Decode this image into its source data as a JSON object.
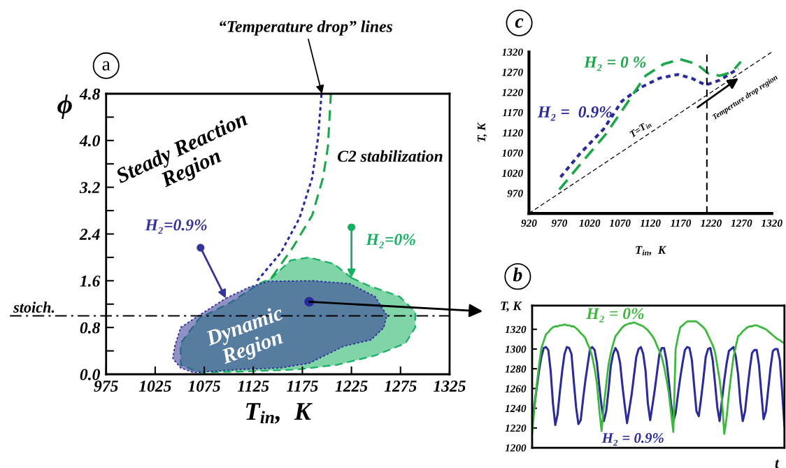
{
  "chart_data": [
    {
      "type": "line",
      "xlabel": "T$_{in}$,  K",
      "ylabel": "ϕ",
      "xlim": [
        975,
        1325
      ],
      "xticks": [
        975,
        1025,
        1075,
        1125,
        1175,
        1225,
        1275,
        1325
      ],
      "ylim": [
        0,
        4.8
      ],
      "yticks": [
        {
          "value": 0,
          "label": "0.0"
        },
        {
          "value": 0.4,
          "label": null
        },
        0.8,
        {
          "value": 1.2,
          "label": null
        },
        1.6,
        {
          "value": 2.0,
          "label": null
        },
        2.4,
        {
          "value": 2.8,
          "label": null
        },
        3.2,
        {
          "value": 3.6,
          "label": null
        },
        {
          "value": 4,
          "label": "4.0"
        },
        {
          "value": 4.4,
          "label": null
        },
        4.8
      ],
      "series": [
        {
          "name": "H₂=0%",
          "type": "area",
          "color": "#16b060",
          "line_style": "dashed",
          "x": [
            1225,
            1242,
            1274,
            1290,
            1290,
            1280,
            1249,
            1210,
            1169,
            1121,
            1070,
            1051,
            1051,
            1070,
            1102,
            1131,
            1144,
            1163,
            1182,
            1207
          ],
          "values": [
            1.65,
            1.52,
            1.33,
            1.07,
            0.8,
            0.53,
            0.32,
            0.16,
            0.08,
            0.05,
            0.03,
            0.16,
            0.53,
            0.96,
            1.23,
            1.55,
            1.65,
            1.95,
            2.0,
            1.89
          ]
        },
        {
          "name": "H₂=0.9%",
          "type": "area",
          "color": "#353599",
          "line_style": "dotted",
          "x": [
            1097,
            1121,
            1140,
            1185,
            1223,
            1249,
            1261,
            1258,
            1245,
            1217,
            1182,
            1153,
            1109,
            1064,
            1051,
            1043,
            1045,
            1051,
            1070
          ],
          "values": [
            1.3,
            1.49,
            1.59,
            1.6,
            1.55,
            1.33,
            1.01,
            0.8,
            0.59,
            0.48,
            0.19,
            0.11,
            0.08,
            0.03,
            0.11,
            0.27,
            0.48,
            0.8,
            1.01
          ]
        },
        {
          "type": "line",
          "color": "#2a2a9a",
          "line_style": "dotted",
          "x": [
            1129,
            1153,
            1172,
            1185,
            1191,
            1194.5
          ],
          "values": [
            1.6,
            2.08,
            2.67,
            3.36,
            4.05,
            4.8
          ]
        },
        {
          "type": "line",
          "color": "#1aa84a",
          "line_style": "dashed",
          "x": [
            1143.6,
            1166,
            1185,
            1196,
            1201,
            1204
          ],
          "values": [
            1.65,
            2.19,
            2.72,
            3.36,
            3.89,
            4.8
          ]
        }
      ],
      "ref_lines": [
        {
          "axis": "y",
          "value": 1.0,
          "label": "stoich.",
          "color": "#000000",
          "line_style": "dashdot"
        }
      ],
      "annotations": [
        "a",
        {
          "text": "“Temperature drop” lines",
          "x": 1195,
          "y": 4.8
        },
        "Steady Reaction\nRegion",
        "C2 stabilization",
        {
          "text": "Dynamic\nRegion",
          "x": 1182,
          "y": 1.24
        }
      ]
    },
    {
      "type": "line",
      "xlabel": "T$_{in}$,  K",
      "ylabel": "T, K",
      "xlim": [
        920,
        1320
      ],
      "xticks": [
        920,
        970,
        1020,
        1070,
        1120,
        1170,
        1220,
        1270,
        1320
      ],
      "ylim": [
        920,
        1320
      ],
      "yticks": [
        970,
        1020,
        1070,
        1120,
        1170,
        1220,
        1270,
        1320
      ],
      "series": [
        {
          "name": "H₂ =  0.9%",
          "color": "#2a2a9a",
          "line_style": "dotted",
          "x": [
            972,
            1004,
            1043,
            1073,
            1104,
            1135,
            1165,
            1188,
            1211,
            1234,
            1265
          ],
          "values": [
            1010,
            1068,
            1129,
            1198,
            1232,
            1255,
            1264,
            1255,
            1238,
            1250,
            1279
          ]
        },
        {
          "name": "H₂ = 0 %",
          "color": "#1aa84a",
          "line_style": "dashed",
          "x": [
            970,
            1008,
            1047,
            1081,
            1112,
            1142,
            1169,
            1196,
            1215,
            1234,
            1254,
            1269
          ],
          "values": [
            979,
            1048,
            1117,
            1192,
            1261,
            1290,
            1302,
            1290,
            1267,
            1261,
            1270,
            1296
          ]
        },
        {
          "name": "T=T$_{in}$",
          "color": "#000000",
          "line_style": "dashed",
          "x": [
            920,
            1320
          ],
          "values": [
            920,
            1320
          ]
        }
      ],
      "ref_lines": [
        {
          "axis": "x",
          "value": 1213,
          "color": "#000000",
          "line_style": "dashed"
        }
      ],
      "annotations": [
        "c",
        {
          "text": "Temperture drop region",
          "x": 1265,
          "y": 1255
        }
      ]
    },
    {
      "type": "line",
      "xlabel": "t",
      "ylabel": "T, K",
      "tick_labels": "y",
      "categories": [
        null,
        null,
        null,
        null,
        null,
        null,
        null,
        null,
        null,
        null,
        null,
        null,
        null,
        null,
        null,
        null,
        null,
        null,
        null,
        null,
        null,
        null,
        null,
        null,
        null,
        null,
        null,
        null,
        null,
        null,
        null,
        null,
        null,
        null,
        null,
        null,
        null,
        null,
        null,
        null,
        null,
        null,
        null,
        null,
        null,
        null,
        null,
        null,
        null,
        null,
        null,
        null,
        null,
        null,
        null,
        null,
        null,
        null,
        null,
        null,
        null,
        null,
        null,
        null,
        null,
        null,
        null,
        null,
        null,
        null,
        null,
        null,
        null,
        null,
        null,
        null,
        null,
        null,
        null,
        null,
        null,
        null,
        null,
        null,
        null,
        null,
        null,
        null,
        null,
        null,
        null,
        null,
        null,
        null,
        null,
        null,
        null,
        null,
        null,
        null,
        null,
        null,
        null,
        null,
        null,
        null,
        null,
        null,
        null,
        null
      ],
      "ylim": [
        1200,
        1344
      ],
      "yticks": [
        1200,
        1220,
        1240,
        1260,
        1280,
        1300,
        1320
      ],
      "series": [
        {
          "name": "H₂ = 0.9%",
          "color": "#2b2b9b",
          "line_style": "solid",
          "values": [
            1225,
            1243,
            1261,
            1278,
            1292,
            1301,
            1302,
            1299,
            1278,
            1245,
            1223,
            1234,
            1257,
            1278,
            1295,
            1302,
            1301,
            1295,
            1267,
            1241,
            1224,
            1228,
            1249,
            1268,
            1284,
            1300,
            1302,
            1299,
            1286,
            1263,
            1242,
            1227,
            1237,
            1258,
            1283,
            1295,
            1301,
            1297,
            1286,
            1263,
            1243,
            1225,
            1239,
            1254,
            1273,
            1292,
            1300,
            1302,
            1295,
            1278,
            1245,
            1228,
            1243,
            1259,
            1277,
            1295,
            1301,
            1301,
            1289,
            1269,
            1245,
            1227,
            1235,
            1254,
            1271,
            1286,
            1299,
            1302,
            1301,
            1289,
            1263,
            1237,
            1232,
            1250,
            1270,
            1292,
            1300,
            1301,
            1289,
            1266,
            1241,
            1227,
            1248,
            1268,
            1285,
            1298,
            1300,
            1302,
            1292,
            1274,
            1245,
            1227,
            1237,
            1259,
            1279,
            1296,
            1299,
            1299,
            1284,
            1256,
            1229,
            1237,
            1259,
            1281,
            1298,
            1300,
            1300,
            1289,
            1257,
            1222
          ]
        },
        {
          "name": "H₂ = 0%",
          "color": "#3cb83c",
          "line_style": "solid",
          "values": [
            1215,
            1240,
            1264,
            1284,
            1301,
            1308,
            1315,
            1317,
            1320,
            1322,
            1323,
            1323,
            1324,
            1324,
            1325,
            1324,
            1324,
            1323,
            1323,
            1321,
            1319,
            1316,
            1314,
            1311,
            1305,
            1300,
            1292,
            1280,
            1265,
            1239,
            1217,
            1243,
            1264,
            1284,
            1296,
            1305,
            1313,
            1316,
            1319,
            1322,
            1324,
            1325,
            1326,
            1326,
            1327,
            1326,
            1325,
            1324,
            1323,
            1321,
            1319,
            1316,
            1313,
            1309,
            1303,
            1298,
            1292,
            1282,
            1270,
            1256,
            1236,
            1216,
            1300,
            1312,
            1322,
            1324,
            1326,
            1328,
            1328,
            1328,
            1328,
            1328,
            1326,
            1324,
            1322,
            1319,
            1314,
            1309,
            1304,
            1297,
            1283,
            1269,
            1249,
            1214,
            1230,
            1254,
            1274,
            1292,
            1303,
            1313,
            1315,
            1318,
            1320,
            1322,
            1323,
            1323,
            1324,
            1324,
            1323,
            1322,
            1321,
            1320,
            1318,
            1316,
            1314,
            1312,
            1310,
            1309,
            1307,
            1306
          ]
        }
      ],
      "annotations": [
        "b"
      ]
    }
  ]
}
